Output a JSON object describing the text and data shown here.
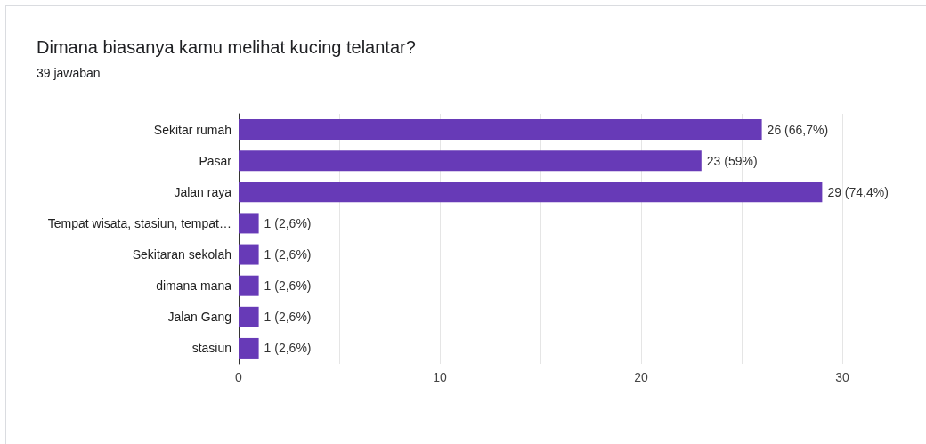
{
  "chart_data": {
    "type": "bar",
    "orientation": "horizontal",
    "title": "Dimana biasanya kamu melihat kucing telantar?",
    "subtitle": "39 jawaban",
    "categories": [
      "Sekitar rumah",
      "Pasar",
      "Jalan raya",
      "Tempat wisata, stasiun, tempat…",
      "Sekitaran sekolah",
      "dimana mana",
      "Jalan Gang",
      "stasiun"
    ],
    "values": [
      26,
      23,
      29,
      1,
      1,
      1,
      1,
      1
    ],
    "value_labels": [
      "26 (66,7%)",
      "23 (59%)",
      "29 (74,4%)",
      "1 (2,6%)",
      "1 (2,6%)",
      "1 (2,6%)",
      "1 (2,6%)",
      "1 (2,6%)"
    ],
    "color": "#673ab7",
    "xlim": [
      0,
      30
    ],
    "xticks": [
      0,
      10,
      20,
      30
    ],
    "grid": "x"
  }
}
